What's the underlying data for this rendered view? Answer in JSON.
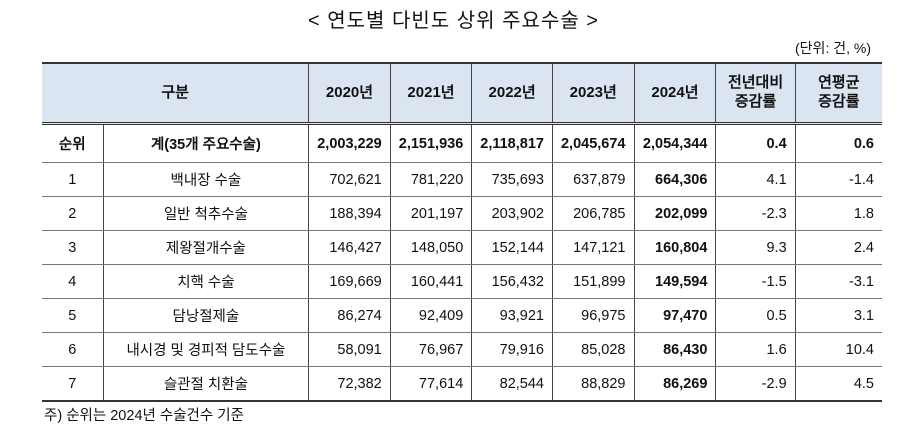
{
  "header": {
    "title": "< 연도별 다빈도 상위 주요수술 >",
    "unit": "(단위: 건, %)"
  },
  "table": {
    "columns": {
      "group": "구분",
      "years": [
        "2020년",
        "2021년",
        "2022년",
        "2023년",
        "2024년"
      ],
      "yoy": [
        "전년대비",
        "증감률"
      ],
      "cagr": [
        "연평균",
        "증감률"
      ]
    },
    "rows": [
      [
        "순위",
        "계(35개 주요수술)",
        "2,003,229",
        "2,151,936",
        "2,118,817",
        "2,045,674",
        "2,054,344",
        "0.4",
        "0.6"
      ],
      [
        "1",
        "백내장 수술",
        "702,621",
        "781,220",
        "735,693",
        "637,879",
        "664,306",
        "4.1",
        "-1.4"
      ],
      [
        "2",
        "일반 척추수술",
        "188,394",
        "201,197",
        "203,902",
        "206,785",
        "202,099",
        "-2.3",
        "1.8"
      ],
      [
        "3",
        "제왕절개수술",
        "146,427",
        "148,050",
        "152,144",
        "147,121",
        "160,804",
        "9.3",
        "2.4"
      ],
      [
        "4",
        "치핵 수술",
        "169,669",
        "160,441",
        "156,432",
        "151,899",
        "149,594",
        "-1.5",
        "-3.1"
      ],
      [
        "5",
        "담낭절제술",
        "86,274",
        "92,409",
        "93,921",
        "96,975",
        "97,470",
        "0.5",
        "3.1"
      ],
      [
        "6",
        "내시경 및 경피적 담도수술",
        "58,091",
        "76,967",
        "79,916",
        "85,028",
        "86,430",
        "1.6",
        "10.4"
      ],
      [
        "7",
        "슬관절 치환술",
        "72,382",
        "77,614",
        "82,544",
        "88,829",
        "86,269",
        "-2.9",
        "4.5"
      ]
    ]
  },
  "footnote": "주) 순위는 2024년 수술건수 기준"
}
